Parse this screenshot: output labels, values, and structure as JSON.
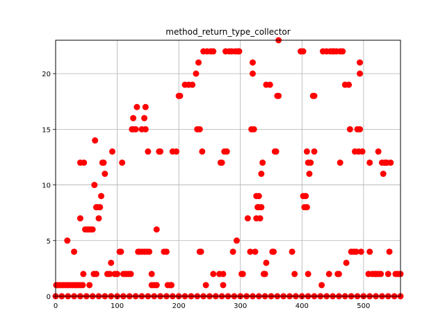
{
  "chart_data": {
    "type": "scatter",
    "title": "method_return_type_collector",
    "xlabel": "",
    "ylabel": "",
    "xlim": [
      0,
      560
    ],
    "ylim": [
      0,
      23
    ],
    "grid": true,
    "marker_color": "#ff0000",
    "x_ticks": [
      0,
      100,
      200,
      300,
      400,
      500
    ],
    "y_ticks": [
      0,
      5,
      10,
      15,
      20
    ],
    "points": [
      [
        1,
        1
      ],
      [
        4,
        1
      ],
      [
        8,
        1
      ],
      [
        12,
        1
      ],
      [
        16,
        1
      ],
      [
        20,
        1
      ],
      [
        24,
        1
      ],
      [
        28,
        1
      ],
      [
        32,
        1
      ],
      [
        36,
        1
      ],
      [
        40,
        1
      ],
      [
        44,
        1
      ],
      [
        19,
        5
      ],
      [
        30,
        4
      ],
      [
        40,
        12
      ],
      [
        40,
        7
      ],
      [
        46,
        12
      ],
      [
        45,
        2
      ],
      [
        48,
        6
      ],
      [
        52,
        6
      ],
      [
        56,
        6
      ],
      [
        60,
        6
      ],
      [
        55,
        1
      ],
      [
        63,
        10
      ],
      [
        64,
        14
      ],
      [
        62,
        2
      ],
      [
        66,
        2
      ],
      [
        66,
        8
      ],
      [
        68,
        8
      ],
      [
        70,
        7
      ],
      [
        72,
        8
      ],
      [
        74,
        9
      ],
      [
        76,
        12
      ],
      [
        78,
        12
      ],
      [
        80,
        11
      ],
      [
        84,
        2
      ],
      [
        88,
        2
      ],
      [
        90,
        3
      ],
      [
        92,
        13
      ],
      [
        96,
        2
      ],
      [
        100,
        2
      ],
      [
        104,
        4
      ],
      [
        106,
        4
      ],
      [
        108,
        12
      ],
      [
        110,
        2
      ],
      [
        114,
        2
      ],
      [
        118,
        2
      ],
      [
        122,
        2
      ],
      [
        124,
        15
      ],
      [
        126,
        15
      ],
      [
        126,
        16
      ],
      [
        130,
        15
      ],
      [
        132,
        17
      ],
      [
        134,
        4
      ],
      [
        136,
        4
      ],
      [
        140,
        4
      ],
      [
        140,
        15
      ],
      [
        144,
        4
      ],
      [
        144,
        16
      ],
      [
        146,
        15
      ],
      [
        146,
        17
      ],
      [
        148,
        4
      ],
      [
        150,
        13
      ],
      [
        152,
        4
      ],
      [
        156,
        2
      ],
      [
        156,
        1
      ],
      [
        160,
        1
      ],
      [
        164,
        6
      ],
      [
        164,
        1
      ],
      [
        168,
        13
      ],
      [
        170,
        13
      ],
      [
        176,
        4
      ],
      [
        180,
        4
      ],
      [
        182,
        1
      ],
      [
        186,
        1
      ],
      [
        188,
        1
      ],
      [
        190,
        13
      ],
      [
        196,
        13
      ],
      [
        200,
        18
      ],
      [
        202,
        18
      ],
      [
        210,
        19
      ],
      [
        216,
        19
      ],
      [
        222,
        19
      ],
      [
        228,
        20
      ],
      [
        230,
        15
      ],
      [
        232,
        21
      ],
      [
        234,
        15
      ],
      [
        234,
        4
      ],
      [
        236,
        4
      ],
      [
        238,
        13
      ],
      [
        240,
        22
      ],
      [
        244,
        1
      ],
      [
        246,
        22
      ],
      [
        252,
        22
      ],
      [
        256,
        22
      ],
      [
        256,
        2
      ],
      [
        266,
        2
      ],
      [
        268,
        12
      ],
      [
        270,
        12
      ],
      [
        272,
        1
      ],
      [
        272,
        2
      ],
      [
        274,
        13
      ],
      [
        276,
        22
      ],
      [
        278,
        13
      ],
      [
        282,
        22
      ],
      [
        286,
        22
      ],
      [
        288,
        4
      ],
      [
        292,
        22
      ],
      [
        294,
        5
      ],
      [
        296,
        22
      ],
      [
        298,
        22
      ],
      [
        302,
        2
      ],
      [
        304,
        2
      ],
      [
        312,
        7
      ],
      [
        316,
        4
      ],
      [
        318,
        15
      ],
      [
        320,
        20
      ],
      [
        320,
        21
      ],
      [
        322,
        15
      ],
      [
        324,
        4
      ],
      [
        326,
        9
      ],
      [
        326,
        7
      ],
      [
        328,
        8
      ],
      [
        330,
        9
      ],
      [
        330,
        8
      ],
      [
        332,
        7
      ],
      [
        334,
        11
      ],
      [
        334,
        8
      ],
      [
        336,
        12
      ],
      [
        338,
        2
      ],
      [
        340,
        2
      ],
      [
        342,
        3
      ],
      [
        342,
        19
      ],
      [
        348,
        19
      ],
      [
        352,
        4
      ],
      [
        354,
        4
      ],
      [
        356,
        13
      ],
      [
        358,
        13
      ],
      [
        360,
        18
      ],
      [
        362,
        18
      ],
      [
        362,
        23
      ],
      [
        384,
        4
      ],
      [
        388,
        2
      ],
      [
        398,
        22
      ],
      [
        402,
        22
      ],
      [
        402,
        9
      ],
      [
        404,
        8
      ],
      [
        406,
        9
      ],
      [
        408,
        8
      ],
      [
        408,
        13
      ],
      [
        410,
        12
      ],
      [
        410,
        2
      ],
      [
        412,
        11
      ],
      [
        414,
        12
      ],
      [
        418,
        18
      ],
      [
        420,
        18
      ],
      [
        420,
        13
      ],
      [
        432,
        1
      ],
      [
        434,
        22
      ],
      [
        440,
        22
      ],
      [
        444,
        2
      ],
      [
        446,
        22
      ],
      [
        450,
        22
      ],
      [
        452,
        22
      ],
      [
        456,
        22
      ],
      [
        458,
        2
      ],
      [
        460,
        2
      ],
      [
        462,
        12
      ],
      [
        462,
        22
      ],
      [
        466,
        22
      ],
      [
        470,
        19
      ],
      [
        472,
        3
      ],
      [
        476,
        19
      ],
      [
        478,
        15
      ],
      [
        480,
        4
      ],
      [
        484,
        4
      ],
      [
        486,
        13
      ],
      [
        488,
        4
      ],
      [
        490,
        15
      ],
      [
        492,
        13
      ],
      [
        494,
        20
      ],
      [
        494,
        21
      ],
      [
        494,
        15
      ],
      [
        496,
        4
      ],
      [
        498,
        13
      ],
      [
        508,
        2
      ],
      [
        510,
        12
      ],
      [
        510,
        4
      ],
      [
        514,
        2
      ],
      [
        518,
        2
      ],
      [
        520,
        2
      ],
      [
        524,
        13
      ],
      [
        524,
        2
      ],
      [
        528,
        2
      ],
      [
        530,
        12
      ],
      [
        532,
        11
      ],
      [
        534,
        12
      ],
      [
        536,
        12
      ],
      [
        538,
        12
      ],
      [
        540,
        2
      ],
      [
        542,
        4
      ],
      [
        544,
        12
      ],
      [
        552,
        2
      ],
      [
        556,
        2
      ],
      [
        560,
        2
      ]
    ],
    "zero_x": [
      0,
      10,
      20,
      30,
      40,
      50,
      60,
      70,
      80,
      90,
      100,
      110,
      120,
      130,
      140,
      150,
      160,
      170,
      180,
      190,
      200,
      210,
      220,
      230,
      240,
      250,
      260,
      270,
      280,
      290,
      300,
      310,
      320,
      330,
      340,
      350,
      360,
      370,
      380,
      390,
      400,
      410,
      420,
      430,
      440,
      450,
      460,
      470,
      480,
      490,
      500,
      510,
      520,
      530,
      540,
      550,
      560
    ]
  }
}
